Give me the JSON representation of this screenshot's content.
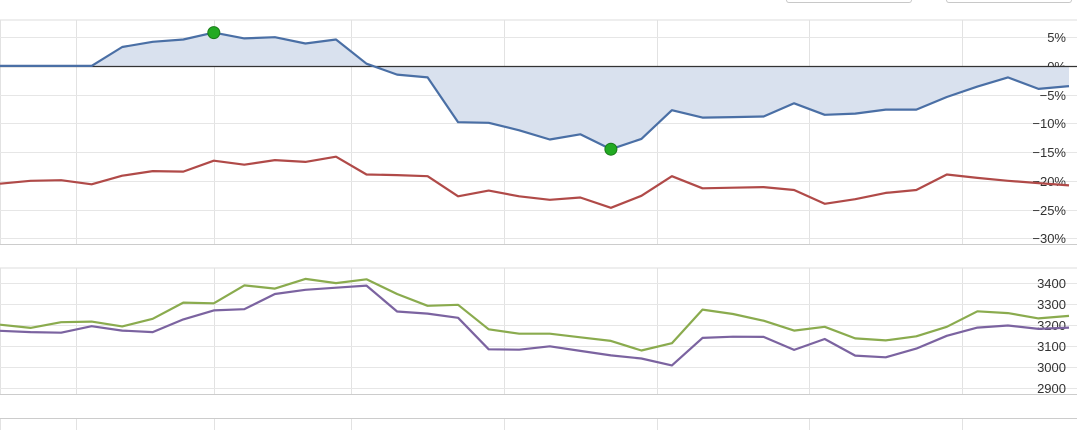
{
  "chart_data": [
    {
      "type": "line",
      "ylim": [
        -31,
        8
      ],
      "yticks": [
        5,
        0,
        -5,
        -10,
        -15,
        -20,
        -25,
        -30
      ],
      "ytick_labels": [
        "5%",
        "0%",
        "−5%",
        "−10%",
        "−15%",
        "−20%",
        "−25%",
        "−30%"
      ],
      "zero_line": true,
      "grid": true,
      "series": [
        {
          "color": "#4a6fa5",
          "fill": "#d9e1ee",
          "x": [
            0,
            1,
            2,
            3,
            4,
            5,
            6,
            7,
            8,
            9,
            10,
            11,
            12,
            13,
            14,
            15,
            16,
            17,
            18,
            19,
            20,
            21,
            22,
            23,
            24,
            25,
            26,
            27,
            28,
            29,
            30,
            31,
            32,
            33,
            34,
            35
          ],
          "values": [
            0,
            0,
            0,
            0,
            3.3,
            4.2,
            4.6,
            5.8,
            4.8,
            5.0,
            3.9,
            4.6,
            0.4,
            -1.5,
            -2.0,
            -9.8,
            -9.9,
            -11.2,
            -12.8,
            -11.9,
            -14.5,
            -12.7,
            -7.7,
            -9.0,
            -8.9,
            -8.8,
            -6.5,
            -8.5,
            -8.3,
            -7.6,
            -7.6,
            -5.4,
            -3.6,
            -2.0,
            -4.0,
            -3.5
          ],
          "markers": [
            {
              "x": 7,
              "value": 5.8,
              "color": "#22aa22"
            },
            {
              "x": 20,
              "value": -14.5,
              "color": "#22aa22"
            }
          ]
        },
        {
          "color": "#b04a48",
          "x": [
            0,
            1,
            2,
            3,
            4,
            5,
            6,
            7,
            8,
            9,
            10,
            11,
            12,
            13,
            14,
            15,
            16,
            17,
            18,
            19,
            20,
            21,
            22,
            23,
            24,
            25,
            26,
            27,
            28,
            29,
            30,
            31,
            32,
            33,
            34,
            35
          ],
          "values": [
            -20.5,
            -20.0,
            -19.9,
            -20.6,
            -19.1,
            -18.3,
            -18.4,
            -16.5,
            -17.2,
            -16.4,
            -16.7,
            -15.8,
            -18.9,
            -19.0,
            -19.2,
            -22.7,
            -21.7,
            -22.7,
            -23.3,
            -22.9,
            -24.7,
            -22.6,
            -19.2,
            -21.3,
            -21.2,
            -21.1,
            -21.6,
            -24.0,
            -23.2,
            -22.1,
            -21.6,
            -18.9,
            -19.5,
            -20.0,
            -20.4,
            -20.8
          ]
        }
      ]
    },
    {
      "type": "line",
      "ylim": [
        2870,
        3470
      ],
      "yticks": [
        3400,
        3300,
        3200,
        3100,
        3000,
        2900
      ],
      "ytick_labels": [
        "3400",
        "3300",
        "3200",
        "3100",
        "3000",
        "2900"
      ],
      "grid": true,
      "series": [
        {
          "color": "#8aab4e",
          "x": [
            0,
            1,
            2,
            3,
            4,
            5,
            6,
            7,
            8,
            9,
            10,
            11,
            12,
            13,
            14,
            15,
            16,
            17,
            18,
            19,
            20,
            21,
            22,
            23,
            24,
            25,
            26,
            27,
            28,
            29,
            30,
            31,
            32,
            33,
            34,
            35
          ],
          "values": [
            3200,
            3185,
            3212,
            3215,
            3192,
            3228,
            3305,
            3302,
            3387,
            3372,
            3418,
            3398,
            3416,
            3346,
            3290,
            3295,
            3178,
            3157,
            3157,
            3140,
            3123,
            3077,
            3112,
            3272,
            3251,
            3219,
            3172,
            3190,
            3135,
            3125,
            3145,
            3190,
            3264,
            3255,
            3230,
            3242
          ]
        },
        {
          "color": "#7b63a0",
          "x": [
            0,
            1,
            2,
            3,
            4,
            5,
            6,
            7,
            8,
            9,
            10,
            11,
            12,
            13,
            14,
            15,
            16,
            17,
            18,
            19,
            20,
            21,
            22,
            23,
            24,
            25,
            26,
            27,
            28,
            29,
            30,
            31,
            32,
            33,
            34,
            35
          ],
          "values": [
            3171,
            3165,
            3162,
            3193,
            3172,
            3165,
            3225,
            3268,
            3274,
            3346,
            3366,
            3376,
            3386,
            3263,
            3253,
            3233,
            3083,
            3081,
            3097,
            3075,
            3054,
            3039,
            3006,
            3137,
            3143,
            3142,
            3080,
            3132,
            3053,
            3045,
            3086,
            3147,
            3186,
            3196,
            3180,
            3186
          ]
        }
      ]
    }
  ],
  "grid_x": [
    0,
    2.5,
    7,
    11.5,
    16.5,
    21.5,
    26.5,
    31.5
  ]
}
